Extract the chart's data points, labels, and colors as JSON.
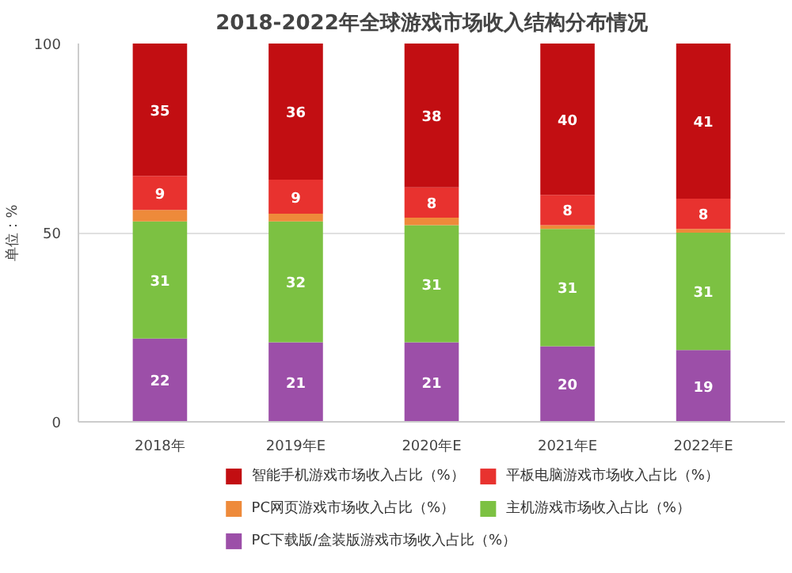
{
  "chart_data": {
    "type": "bar",
    "title": "2018-2022年全球游戏市场收入结构分布情况",
    "ylabel": "单位：%",
    "categories": [
      "2018年",
      "2019年E",
      "2020年E",
      "2021年E",
      "2022年E"
    ],
    "stacked": true,
    "ylim": [
      0,
      100
    ],
    "yticks": [
      0,
      50,
      100
    ],
    "grid": "y",
    "legend": "bottom",
    "series": [
      {
        "name": "PC下载版/盒装版游戏市场收入占比（%）",
        "color": "#9c4fa8",
        "values": [
          22,
          21,
          21,
          20,
          19
        ],
        "value_labels": [
          "22",
          "21",
          "21",
          "20",
          "19"
        ]
      },
      {
        "name": "主机游戏市场收入占比（%）",
        "color": "#7cc142",
        "values": [
          31,
          32,
          31,
          31,
          31
        ],
        "value_labels": [
          "31",
          "32",
          "31",
          "31",
          "31"
        ]
      },
      {
        "name": "PC网页游戏市场收入占比（%）",
        "color": "#ee8a3a",
        "values": [
          3,
          2,
          2,
          1,
          1
        ],
        "value_labels": [
          null,
          null,
          null,
          null,
          null
        ]
      },
      {
        "name": "平板电脑游戏市场收入占比（%）",
        "color": "#e8322f",
        "values": [
          9,
          9,
          8,
          8,
          8
        ],
        "value_labels": [
          "9",
          "9",
          "8",
          "8",
          "8"
        ]
      },
      {
        "name": "智能手机游戏市场收入占比（%）",
        "color": "#c20e12",
        "values": [
          35,
          36,
          38,
          40,
          41
        ],
        "value_labels": [
          "35",
          "36",
          "38",
          "40",
          "41"
        ]
      }
    ]
  }
}
